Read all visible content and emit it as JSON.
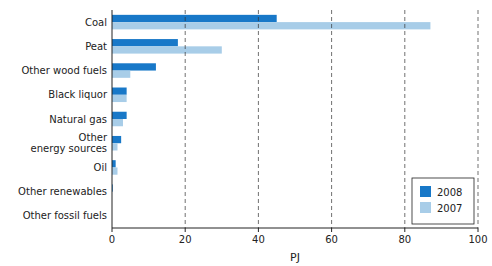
{
  "chart_data": {
    "type": "bar",
    "orientation": "horizontal",
    "categories": [
      "Other fossil fuels",
      "Other renewables",
      "Oil",
      "Other\nenergy sources",
      "Natural gas",
      "Black liquor",
      "Other wood fuels",
      "Peat",
      "Coal"
    ],
    "series": [
      {
        "name": "2008",
        "color": "#1878c8",
        "values": [
          0.0,
          0.2,
          1.0,
          2.5,
          4.0,
          4.0,
          12.0,
          18.0,
          45.0
        ]
      },
      {
        "name": "2007",
        "color": "#a8cde8",
        "values": [
          0.0,
          0.0,
          1.5,
          1.5,
          3.0,
          4.0,
          5.0,
          30.0,
          87.0
        ]
      }
    ],
    "x_label": "PJ",
    "xlim": [
      0,
      100
    ],
    "xticks": [
      0,
      20,
      40,
      60,
      80,
      100
    ],
    "grid": true,
    "legend": "lower right"
  }
}
